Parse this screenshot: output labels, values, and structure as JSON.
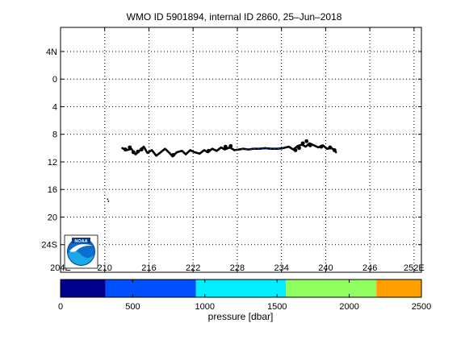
{
  "title": "WMO ID 5901894, internal ID 2860, 25–Jun–2018",
  "map": {
    "lon_ticks": [
      204,
      210,
      216,
      222,
      228,
      234,
      240,
      246,
      252
    ],
    "lon_tick_labels": [
      "204E",
      "210",
      "216",
      "222",
      "228",
      "234",
      "240",
      "246",
      "252E"
    ],
    "lat_ticks": [
      -4,
      0,
      4,
      8,
      12,
      16,
      20,
      24
    ],
    "lat_tick_labels": [
      "4N",
      "0",
      "4",
      "8",
      "12",
      "16",
      "20",
      "24S"
    ],
    "lon_range": [
      204,
      253
    ],
    "lat_range": [
      -7.5,
      28
    ],
    "grid": true,
    "grid_style": "dotted",
    "track_color": "#000000",
    "track": [
      [
        212.4,
        10.0
      ],
      [
        213.0,
        10.3
      ],
      [
        213.6,
        10.1
      ],
      [
        214.2,
        10.9
      ],
      [
        214.8,
        10.3
      ],
      [
        215.3,
        9.8
      ],
      [
        215.8,
        10.7
      ],
      [
        216.4,
        10.3
      ],
      [
        217.0,
        11.1
      ],
      [
        217.6,
        10.6
      ],
      [
        218.2,
        10.1
      ],
      [
        218.8,
        10.7
      ],
      [
        219.2,
        11.2
      ],
      [
        219.8,
        10.6
      ],
      [
        220.5,
        10.4
      ],
      [
        221.0,
        10.9
      ],
      [
        221.6,
        10.3
      ],
      [
        222.2,
        10.6
      ],
      [
        222.9,
        10.8
      ],
      [
        223.5,
        10.3
      ],
      [
        224.0,
        10.6
      ],
      [
        224.6,
        10.1
      ],
      [
        225.2,
        10.4
      ],
      [
        225.8,
        9.9
      ],
      [
        226.3,
        10.2
      ],
      [
        227.0,
        9.9
      ],
      [
        227.6,
        10.3
      ],
      [
        228.2,
        10.2
      ],
      [
        228.8,
        10.1
      ],
      [
        229.5,
        10.2
      ],
      [
        230.2,
        10.1
      ],
      [
        231.0,
        10.1
      ],
      [
        231.8,
        10.0
      ],
      [
        232.6,
        10.1
      ],
      [
        233.4,
        10.1
      ],
      [
        234.2,
        10.0
      ],
      [
        235.0,
        9.8
      ],
      [
        235.6,
        10.2
      ],
      [
        236.2,
        9.7
      ],
      [
        236.8,
        9.5
      ],
      [
        237.3,
        9.8
      ],
      [
        237.8,
        9.3
      ],
      [
        238.4,
        9.6
      ],
      [
        239.0,
        9.9
      ],
      [
        239.6,
        9.6
      ],
      [
        240.2,
        10.1
      ],
      [
        240.8,
        10.0
      ],
      [
        241.2,
        10.3
      ],
      [
        241.4,
        10.6
      ]
    ],
    "track_blue_segment": [
      [
        228.6,
        10.15
      ],
      [
        229.5,
        10.2
      ],
      [
        230.2,
        10.1
      ],
      [
        231.0,
        10.1
      ],
      [
        231.8,
        10.0
      ],
      [
        232.6,
        10.1
      ],
      [
        233.4,
        10.1
      ],
      [
        234.2,
        10.0
      ]
    ],
    "blob_clusters": [
      [
        212.8,
        10.2
      ],
      [
        213.4,
        9.9
      ],
      [
        213.9,
        10.6
      ],
      [
        214.5,
        10.5
      ],
      [
        215.0,
        10.2
      ],
      [
        219.3,
        11.0
      ],
      [
        224.1,
        10.4
      ],
      [
        226.4,
        9.8
      ],
      [
        227.1,
        9.7
      ],
      [
        235.9,
        10.3
      ],
      [
        236.4,
        10.0
      ],
      [
        236.9,
        9.3
      ],
      [
        237.4,
        9.0
      ],
      [
        237.9,
        9.6
      ],
      [
        239.4,
        9.8
      ],
      [
        240.6,
        9.9
      ],
      [
        241.2,
        10.3
      ]
    ],
    "stray_points": [
      [
        210.4,
        17.4
      ],
      [
        210.5,
        17.7
      ]
    ],
    "logo": "noaa-logo"
  },
  "colorbar": {
    "label": "pressure [dbar]",
    "ticks": [
      0,
      500,
      1000,
      1500,
      2000,
      2500
    ],
    "range": [
      0,
      2500
    ],
    "bands": [
      {
        "from": 0,
        "to": 312,
        "color": "#00008f"
      },
      {
        "from": 312,
        "to": 938,
        "color": "#0050ff"
      },
      {
        "from": 938,
        "to": 1562,
        "color": "#00eeff"
      },
      {
        "from": 1562,
        "to": 2188,
        "color": "#8fff60"
      },
      {
        "from": 2188,
        "to": 2500,
        "color": "#ffa000"
      }
    ]
  }
}
